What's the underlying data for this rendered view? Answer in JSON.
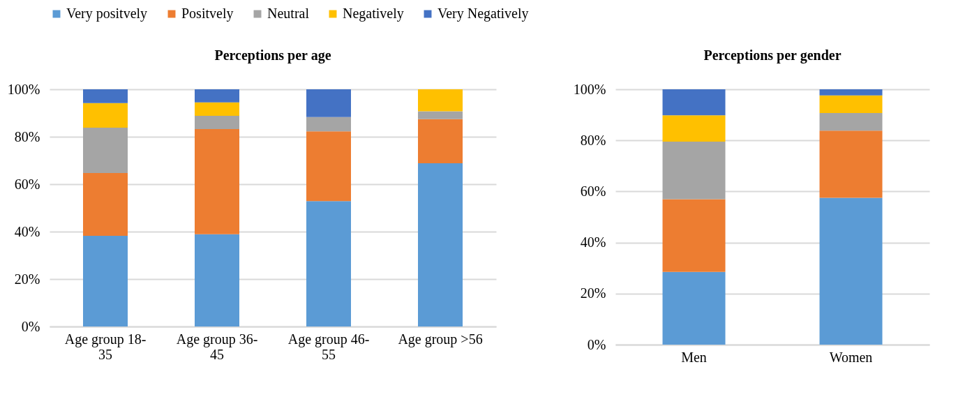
{
  "chart_data": [
    {
      "type": "bar",
      "stacked": true,
      "title": "Perceptions per age",
      "categories": [
        "Age group 18-35",
        "Age group 36-45",
        "Age group 46-55",
        "Age group >56"
      ],
      "legend": "top",
      "grid": "y",
      "ylim": [
        0,
        100
      ],
      "yticks": [
        {
          "value": 0,
          "label": "0%"
        },
        {
          "value": 20,
          "label": "20%"
        },
        {
          "value": 40,
          "label": "40%"
        },
        {
          "value": 60,
          "label": "60%"
        },
        {
          "value": 80,
          "label": "80%"
        },
        {
          "value": 100,
          "label": "100%"
        }
      ],
      "series": [
        {
          "name": "Very positvely",
          "color": "#5b9bd5",
          "values": [
            38.2,
            38.9,
            52.9,
            68.8
          ]
        },
        {
          "name": "Positvely",
          "color": "#ed7d31",
          "values": [
            26.5,
            44.3,
            29.4,
            18.6
          ]
        },
        {
          "name": "Neutral",
          "color": "#a5a5a5",
          "values": [
            19.1,
            5.6,
            6.0,
            3.3
          ]
        },
        {
          "name": "Negatively",
          "color": "#ffc000",
          "values": [
            10.4,
            5.7,
            0,
            9.3
          ]
        },
        {
          "name": "Very Negatively",
          "color": "#4472c4",
          "values": [
            5.8,
            5.5,
            11.7,
            0
          ]
        }
      ]
    },
    {
      "type": "bar",
      "stacked": true,
      "title": "Perceptions per gender",
      "categories": [
        "Men",
        "Women"
      ],
      "grid": "y",
      "ylim": [
        0,
        100
      ],
      "yticks": [
        {
          "value": 0,
          "label": "0%"
        },
        {
          "value": 20,
          "label": "20%"
        },
        {
          "value": 40,
          "label": "40%"
        },
        {
          "value": 60,
          "label": "60%"
        },
        {
          "value": 80,
          "label": "80%"
        },
        {
          "value": 100,
          "label": "100%"
        }
      ],
      "series": [
        {
          "color": "#5b9bd5",
          "values": [
            28.5,
            57.5
          ]
        },
        {
          "color": "#ed7d31",
          "values": [
            28.5,
            26.3
          ]
        },
        {
          "color": "#a5a5a5",
          "values": [
            22.5,
            6.9
          ]
        },
        {
          "color": "#ffc000",
          "values": [
            10.3,
            6.9
          ]
        },
        {
          "color": "#4472c4",
          "values": [
            10.2,
            2.4
          ]
        }
      ]
    }
  ]
}
